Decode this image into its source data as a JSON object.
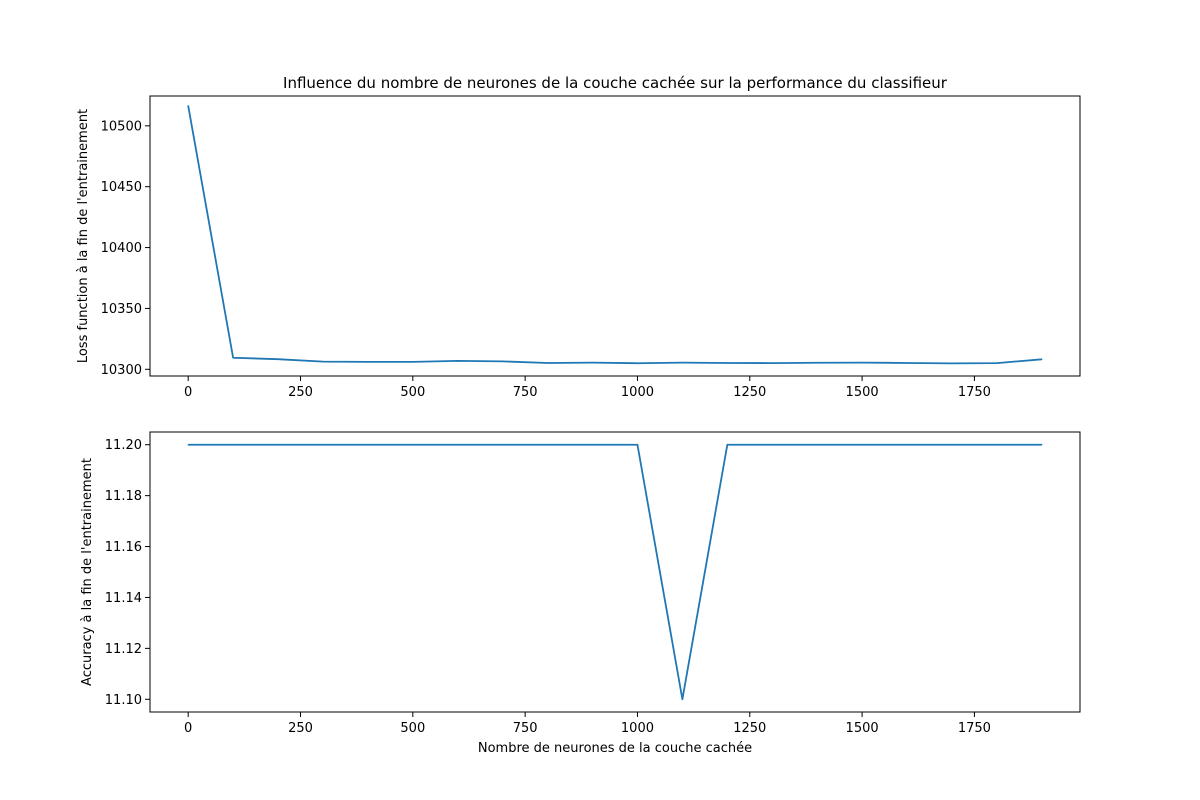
{
  "chart_data": [
    {
      "type": "line",
      "title": "Influence du nombre de neurones de la couche cachée sur la performance du classifieur",
      "xlabel": "",
      "ylabel": "Loss function à la fin de l'entrainement",
      "xlim": [
        -85,
        1985
      ],
      "ylim": [
        10294.5,
        10524.5
      ],
      "xticks": [
        0,
        250,
        500,
        750,
        1000,
        1250,
        1500,
        1750
      ],
      "xtick_labels": [
        "0",
        "250",
        "500",
        "750",
        "1000",
        "1250",
        "1500",
        "1750"
      ],
      "yticks": [
        10300,
        10350,
        10400,
        10450,
        10500
      ],
      "ytick_labels": [
        "10300",
        "10350",
        "10400",
        "10450",
        "10500"
      ],
      "grid": false,
      "color": "#1f77b4",
      "series": [
        {
          "x": [
            0,
            100,
            200,
            300,
            400,
            500,
            600,
            700,
            800,
            900,
            1000,
            1100,
            1200,
            1300,
            1400,
            1500,
            1600,
            1700,
            1800,
            1900
          ],
          "values": [
            10516.5,
            10309.5,
            10308.3,
            10306.3,
            10306.1,
            10306.1,
            10306.9,
            10306.5,
            10305.2,
            10305.5,
            10305.0,
            10305.5,
            10305.2,
            10305.1,
            10305.4,
            10305.5,
            10305.2,
            10304.9,
            10305.1,
            10308.2
          ]
        }
      ]
    },
    {
      "type": "line",
      "title": "",
      "xlabel": "Nombre de neurones de la couche cachée",
      "ylabel": "Accuracy à la fin de l'entrainement",
      "xlim": [
        -85,
        1985
      ],
      "ylim": [
        11.095,
        11.205
      ],
      "xticks": [
        0,
        250,
        500,
        750,
        1000,
        1250,
        1500,
        1750
      ],
      "xtick_labels": [
        "0",
        "250",
        "500",
        "750",
        "1000",
        "1250",
        "1500",
        "1750"
      ],
      "yticks": [
        11.1,
        11.12,
        11.14,
        11.16,
        11.18,
        11.2
      ],
      "ytick_labels": [
        "11.10",
        "11.12",
        "11.14",
        "11.16",
        "11.18",
        "11.20"
      ],
      "grid": false,
      "color": "#1f77b4",
      "series": [
        {
          "x": [
            0,
            100,
            200,
            300,
            400,
            500,
            600,
            700,
            800,
            900,
            1000,
            1100,
            1200,
            1300,
            1400,
            1500,
            1600,
            1700,
            1800,
            1900
          ],
          "values": [
            11.2,
            11.2,
            11.2,
            11.2,
            11.2,
            11.2,
            11.2,
            11.2,
            11.2,
            11.2,
            11.2,
            11.1,
            11.2,
            11.2,
            11.2,
            11.2,
            11.2,
            11.2,
            11.2,
            11.2
          ]
        }
      ]
    }
  ]
}
